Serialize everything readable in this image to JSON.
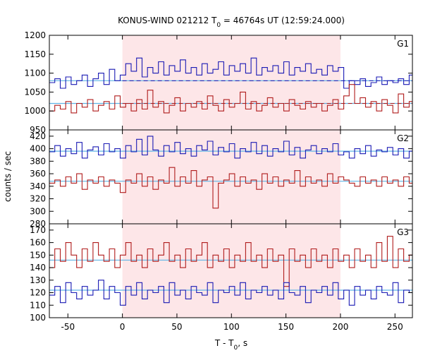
{
  "chart_data": {
    "type": "line",
    "title_main": "KONUS-WIND 021212 T",
    "title_sub": "0",
    "title_rest": " = 46764s UT (12:59:24.000)",
    "xlabel_main": "T - T",
    "xlabel_sub": "0",
    "xlabel_rest": ", s",
    "ylabel": "counts / sec",
    "xlim": [
      -67,
      266
    ],
    "xticks": [
      -50,
      0,
      50,
      100,
      150,
      200,
      250
    ],
    "highlight": {
      "x0": 0,
      "x1": 200,
      "color": "#fde6e8"
    },
    "colors": {
      "blue": "#1a1ab4",
      "red": "#b01c1c",
      "background_fit": "#5fb4e6"
    },
    "panels": [
      {
        "label": "G1",
        "ylim": [
          950,
          1200
        ],
        "yticks": [
          950,
          1000,
          1050,
          1100,
          1150,
          1200
        ],
        "series": [
          {
            "color": "blue",
            "background": 1080,
            "dashed_level": 1080,
            "x": [
              -67,
              -62,
              -57,
              -52,
              -47,
              -42,
              -37,
              -32,
              -27,
              -22,
              -17,
              -12,
              -7,
              -2,
              3,
              8,
              13,
              18,
              23,
              28,
              33,
              38,
              43,
              48,
              53,
              58,
              63,
              68,
              73,
              78,
              83,
              88,
              93,
              98,
              103,
              108,
              113,
              118,
              123,
              128,
              133,
              138,
              143,
              148,
              153,
              158,
              163,
              168,
              173,
              178,
              183,
              188,
              193,
              198,
              203,
              208,
              213,
              218,
              223,
              228,
              233,
              238,
              243,
              248,
              253,
              258,
              263
            ],
            "values": [
              1075,
              1085,
              1060,
              1090,
              1070,
              1080,
              1095,
              1065,
              1085,
              1100,
              1070,
              1110,
              1080,
              1095,
              1125,
              1105,
              1140,
              1090,
              1115,
              1100,
              1130,
              1095,
              1120,
              1105,
              1135,
              1100,
              1115,
              1095,
              1125,
              1100,
              1110,
              1130,
              1095,
              1120,
              1105,
              1125,
              1100,
              1140,
              1095,
              1115,
              1105,
              1120,
              1100,
              1130,
              1095,
              1115,
              1105,
              1125,
              1100,
              1110,
              1095,
              1120,
              1105,
              1115,
              1060,
              1080,
              1070,
              1085,
              1065,
              1075,
              1090,
              1070,
              1080,
              1075,
              1085,
              1070,
              1095
            ]
          },
          {
            "color": "red",
            "background": 1020,
            "dashed_level": 1020,
            "x": [
              -67,
              -62,
              -57,
              -52,
              -47,
              -42,
              -37,
              -32,
              -27,
              -22,
              -17,
              -12,
              -7,
              -2,
              3,
              8,
              13,
              18,
              23,
              28,
              33,
              38,
              43,
              48,
              53,
              58,
              63,
              68,
              73,
              78,
              83,
              88,
              93,
              98,
              103,
              108,
              113,
              118,
              123,
              128,
              133,
              138,
              143,
              148,
              153,
              158,
              163,
              168,
              173,
              178,
              183,
              188,
              193,
              198,
              203,
              208,
              213,
              218,
              223,
              228,
              233,
              238,
              243,
              248,
              253,
              258,
              263
            ],
            "values": [
              1000,
              1015,
              1005,
              1025,
              995,
              1020,
              1010,
              1030,
              1000,
              1015,
              1025,
              1005,
              1040,
              1010,
              1020,
              1000,
              1030,
              1005,
              1055,
              1010,
              1025,
              995,
              1015,
              1035,
              1000,
              1020,
              1010,
              1025,
              1005,
              1040,
              1015,
              1000,
              1030,
              1010,
              1020,
              1050,
              1005,
              1025,
              1000,
              1015,
              1035,
              1010,
              1020,
              1000,
              1030,
              1015,
              1005,
              1025,
              1010,
              1020,
              1000,
              1015,
              1030,
              1005,
              1040,
              1070,
              1020,
              1035,
              1010,
              1025,
              1000,
              1030,
              1015,
              995,
              1045,
              1010,
              1025
            ]
          }
        ]
      },
      {
        "label": "G2",
        "ylim": [
          280,
          430
        ],
        "yticks": [
          280,
          300,
          320,
          340,
          360,
          380,
          400,
          420
        ],
        "series": [
          {
            "color": "blue",
            "background": 396,
            "x": [
              -67,
              -62,
              -57,
              -52,
              -47,
              -42,
              -37,
              -32,
              -27,
              -22,
              -17,
              -12,
              -7,
              -2,
              3,
              8,
              13,
              18,
              23,
              28,
              33,
              38,
              43,
              48,
              53,
              58,
              63,
              68,
              73,
              78,
              83,
              88,
              93,
              98,
              103,
              108,
              113,
              118,
              123,
              128,
              133,
              138,
              143,
              148,
              153,
              158,
              163,
              168,
              173,
              178,
              183,
              188,
              193,
              198,
              203,
              208,
              213,
              218,
              223,
              228,
              233,
              238,
              243,
              248,
              253,
              258,
              263
            ],
            "values": [
              395,
              405,
              388,
              400,
              392,
              410,
              385,
              398,
              403,
              390,
              408,
              395,
              400,
              385,
              405,
              395,
              415,
              390,
              420,
              398,
              388,
              405,
              395,
              410,
              392,
              400,
              388,
              405,
              398,
              412,
              390,
              402,
              395,
              408,
              385,
              400,
              395,
              410,
              392,
              405,
              388,
              400,
              395,
              412,
              390,
              402,
              385,
              398,
              405,
              392,
              400,
              395,
              408,
              390,
              395,
              385,
              400,
              392,
              405,
              388,
              398,
              395,
              402,
              390,
              400,
              385,
              396
            ]
          },
          {
            "color": "red",
            "background": 348,
            "x": [
              -67,
              -62,
              -57,
              -52,
              -47,
              -42,
              -37,
              -32,
              -27,
              -22,
              -17,
              -12,
              -7,
              -2,
              3,
              8,
              13,
              18,
              23,
              28,
              33,
              38,
              43,
              48,
              53,
              58,
              63,
              68,
              73,
              78,
              83,
              88,
              93,
              98,
              103,
              108,
              113,
              118,
              123,
              128,
              133,
              138,
              143,
              148,
              153,
              158,
              163,
              168,
              173,
              178,
              183,
              188,
              193,
              198,
              203,
              208,
              213,
              218,
              223,
              228,
              233,
              238,
              243,
              248,
              253,
              258,
              263
            ],
            "values": [
              345,
              350,
              340,
              355,
              345,
              360,
              335,
              350,
              345,
              355,
              340,
              350,
              345,
              330,
              350,
              345,
              360,
              340,
              355,
              335,
              350,
              345,
              370,
              340,
              355,
              345,
              365,
              340,
              350,
              355,
              305,
              345,
              350,
              360,
              340,
              355,
              345,
              350,
              335,
              360,
              345,
              355,
              340,
              350,
              345,
              365,
              340,
              355,
              345,
              350,
              340,
              360,
              345,
              355,
              350,
              345,
              340,
              355,
              345,
              350,
              340,
              355,
              345,
              350,
              340,
              355,
              345
            ]
          }
        ]
      },
      {
        "label": "G3",
        "ylim": [
          100,
          175
        ],
        "yticks": [
          100,
          110,
          120,
          130,
          140,
          150,
          160,
          170
        ],
        "series": [
          {
            "color": "red",
            "background": 146,
            "x": [
              -67,
              -62,
              -57,
              -52,
              -47,
              -42,
              -37,
              -32,
              -27,
              -22,
              -17,
              -12,
              -7,
              -2,
              3,
              8,
              13,
              18,
              23,
              28,
              33,
              38,
              43,
              48,
              53,
              58,
              63,
              68,
              73,
              78,
              83,
              88,
              93,
              98,
              103,
              108,
              113,
              118,
              123,
              128,
              133,
              138,
              143,
              148,
              153,
              158,
              163,
              168,
              173,
              178,
              183,
              188,
              193,
              198,
              203,
              208,
              213,
              218,
              223,
              228,
              233,
              238,
              243,
              248,
              253,
              258,
              263
            ],
            "values": [
              140,
              155,
              145,
              160,
              150,
              140,
              155,
              145,
              160,
              150,
              145,
              155,
              140,
              150,
              160,
              145,
              150,
              140,
              155,
              145,
              150,
              160,
              145,
              150,
              140,
              155,
              145,
              150,
              160,
              140,
              150,
              145,
              155,
              140,
              150,
              145,
              160,
              145,
              150,
              140,
              155,
              145,
              150,
              125,
              155,
              145,
              150,
              140,
              155,
              145,
              150,
              140,
              155,
              145,
              150,
              140,
              155,
              145,
              150,
              140,
              160,
              145,
              165,
              140,
              155,
              145,
              150
            ]
          },
          {
            "color": "blue",
            "background": 122,
            "x": [
              -67,
              -62,
              -57,
              -52,
              -47,
              -42,
              -37,
              -32,
              -27,
              -22,
              -17,
              -12,
              -7,
              -2,
              3,
              8,
              13,
              18,
              23,
              28,
              33,
              38,
              43,
              48,
              53,
              58,
              63,
              68,
              73,
              78,
              83,
              88,
              93,
              98,
              103,
              108,
              113,
              118,
              123,
              128,
              133,
              138,
              143,
              148,
              153,
              158,
              163,
              168,
              173,
              178,
              183,
              188,
              193,
              198,
              203,
              208,
              213,
              218,
              223,
              228,
              233,
              238,
              243,
              248,
              253,
              258,
              263
            ],
            "values": [
              118,
              125,
              112,
              128,
              120,
              115,
              125,
              118,
              122,
              130,
              115,
              125,
              120,
              110,
              125,
              118,
              128,
              115,
              122,
              120,
              125,
              112,
              128,
              118,
              122,
              115,
              125,
              120,
              118,
              128,
              112,
              122,
              120,
              125,
              118,
              128,
              115,
              122,
              120,
              125,
              118,
              122,
              115,
              128,
              120,
              118,
              125,
              112,
              122,
              120,
              125,
              118,
              128,
              115,
              122,
              110,
              125,
              118,
              122,
              115,
              125,
              120,
              118,
              128,
              112,
              122,
              120
            ]
          }
        ]
      }
    ]
  }
}
